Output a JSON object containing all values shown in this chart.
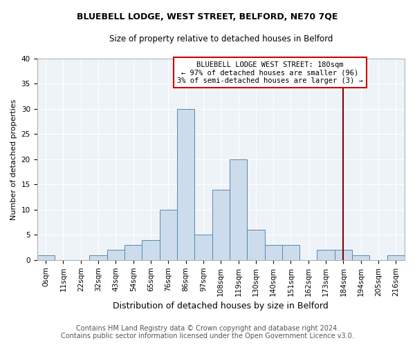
{
  "title": "BLUEBELL LODGE, WEST STREET, BELFORD, NE70 7QE",
  "subtitle": "Size of property relative to detached houses in Belford",
  "xlabel": "Distribution of detached houses by size in Belford",
  "ylabel": "Number of detached properties",
  "footnote1": "Contains HM Land Registry data © Crown copyright and database right 2024.",
  "footnote2": "Contains public sector information licensed under the Open Government Licence v3.0.",
  "bin_labels": [
    "0sqm",
    "11sqm",
    "22sqm",
    "32sqm",
    "43sqm",
    "54sqm",
    "65sqm",
    "76sqm",
    "86sqm",
    "97sqm",
    "108sqm",
    "119sqm",
    "130sqm",
    "140sqm",
    "151sqm",
    "162sqm",
    "173sqm",
    "184sqm",
    "194sqm",
    "205sqm",
    "216sqm"
  ],
  "bar_heights": [
    1,
    0,
    0,
    1,
    2,
    3,
    4,
    10,
    30,
    5,
    14,
    20,
    6,
    3,
    3,
    0,
    2,
    2,
    1,
    0,
    1
  ],
  "bar_color": "#ccdcec",
  "bar_edge_color": "#5588aa",
  "vline_color": "#880000",
  "vline_x_idx": 17,
  "annotation_text": "BLUEBELL LODGE WEST STREET: 180sqm\n← 97% of detached houses are smaller (96)\n3% of semi-detached houses are larger (3) →",
  "annotation_box_edgecolor": "#cc0000",
  "ylim": [
    0,
    40
  ],
  "yticks": [
    0,
    5,
    10,
    15,
    20,
    25,
    30,
    35,
    40
  ],
  "title_fontsize": 9,
  "subtitle_fontsize": 8.5,
  "xlabel_fontsize": 9,
  "ylabel_fontsize": 8,
  "tick_fontsize": 7.5,
  "footnote_fontsize": 7,
  "annot_fontsize": 7.5
}
